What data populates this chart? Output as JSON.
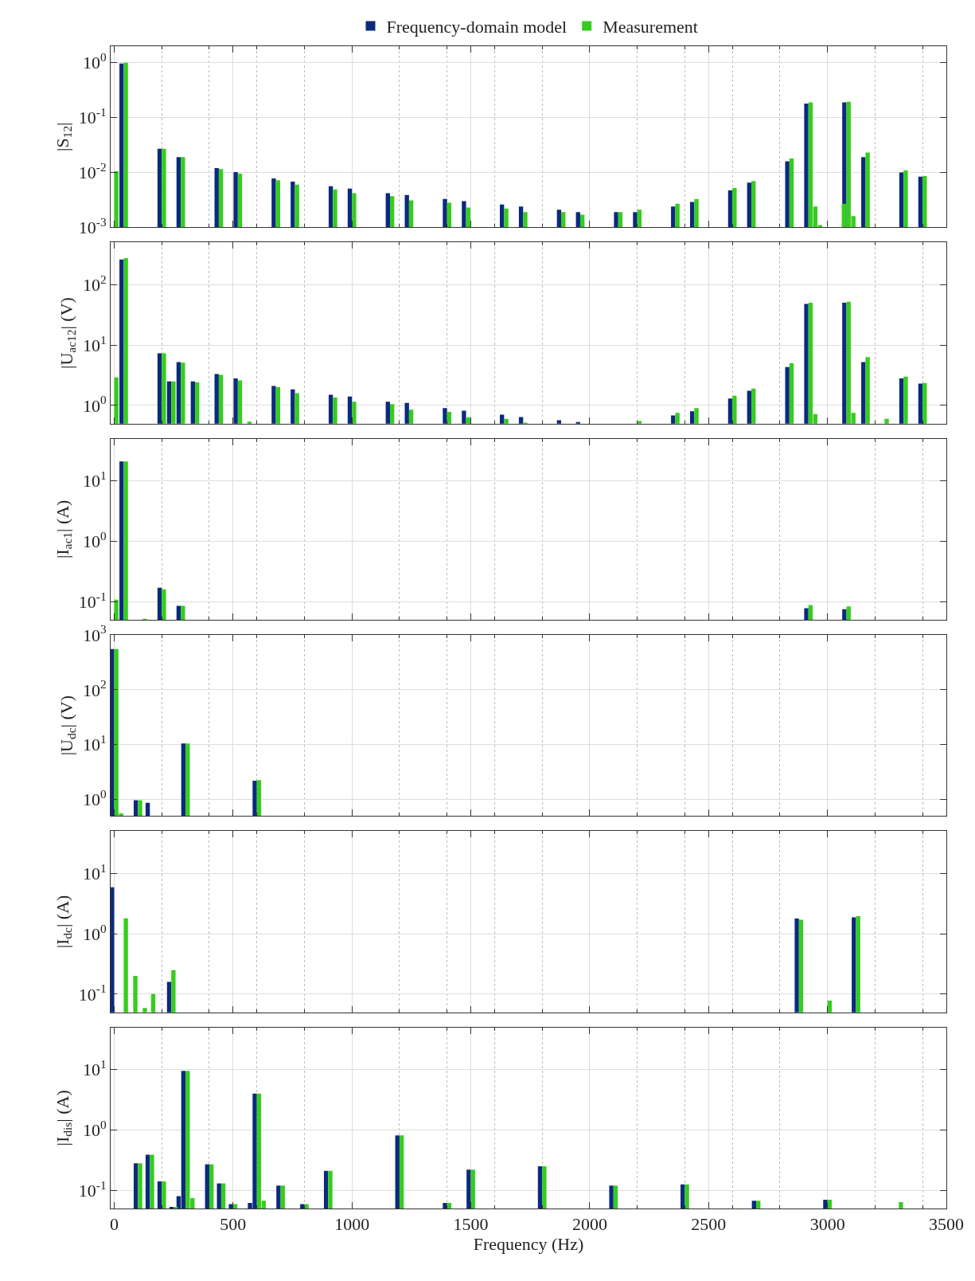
{
  "chart_data": [
    {
      "type": "bar",
      "ylabel": "|S$_{12}$|",
      "log": true,
      "grid": true,
      "legend": "top",
      "tick_labels": "y",
      "xlim": [
        -15,
        3500
      ],
      "xticks": [
        0,
        500,
        1000,
        1500,
        2000,
        2500,
        3000,
        3500
      ],
      "ylim": [
        0.001,
        2
      ],
      "yticks": [
        {
          "value": 0.001,
          "label": "10$^{-3}$"
        },
        {
          "value": 0.01,
          "label": "10$^{-2}$"
        },
        {
          "value": 0.1,
          "label": "10$^{-1}$"
        },
        {
          "value": 1,
          "label": "10$^{0}$"
        }
      ],
      "series": [
        {
          "name": "Frequency-domain model",
          "color": "#0b2a7e",
          "x": [
            40,
            200,
            280,
            440,
            520,
            680,
            760,
            920,
            1000,
            1160,
            1240,
            1400,
            1480,
            1640,
            1720,
            1880,
            1960,
            2120,
            2200,
            2360,
            2440,
            2600,
            2680,
            2840,
            2920,
            3080,
            3160,
            3320,
            3400
          ],
          "values": [
            0.97,
            0.027,
            0.019,
            0.012,
            0.0102,
            0.0078,
            0.0068,
            0.0056,
            0.0051,
            0.0042,
            0.0039,
            0.0033,
            0.003,
            0.0026,
            0.0024,
            0.0021,
            0.0019,
            0.0019,
            0.0019,
            0.0024,
            0.0029,
            0.0047,
            0.0065,
            0.016,
            0.18,
            0.19,
            0.019,
            0.01,
            0.0084
          ]
        },
        {
          "name": "Measurement",
          "color": "#36cc1f",
          "x": [
            0,
            40,
            200,
            280,
            440,
            520,
            680,
            760,
            920,
            1000,
            1160,
            1240,
            1400,
            1480,
            1640,
            1720,
            1880,
            1960,
            2120,
            2200,
            2360,
            2440,
            2600,
            2680,
            2840,
            2920,
            2940,
            2960,
            3060,
            3080,
            3100,
            3160,
            3320,
            3400
          ],
          "values": [
            0.0105,
            1.0,
            0.027,
            0.019,
            0.0115,
            0.0095,
            0.0072,
            0.006,
            0.0049,
            0.0042,
            0.0037,
            0.0031,
            0.0028,
            0.0023,
            0.0022,
            0.0019,
            0.0019,
            0.0017,
            0.0019,
            0.0021,
            0.0027,
            0.0033,
            0.0052,
            0.007,
            0.018,
            0.19,
            0.0024,
            0.0011,
            0.0027,
            0.195,
            0.0016,
            0.023,
            0.011,
            0.0086
          ]
        }
      ]
    },
    {
      "type": "bar",
      "ylabel": "|U$_{ac12}$| (V)",
      "log": true,
      "grid": true,
      "tick_labels": "y",
      "xlim": [
        -15,
        3500
      ],
      "xticks": [
        0,
        500,
        1000,
        1500,
        2000,
        2500,
        3000,
        3500
      ],
      "ylim": [
        0.5,
        500
      ],
      "yticks": [
        {
          "value": 1,
          "label": "10$^{0}$"
        },
        {
          "value": 10,
          "label": "10$^{1}$"
        },
        {
          "value": 100,
          "label": "10$^{2}$"
        }
      ],
      "series": [
        {
          "color": "#0b2a7e",
          "x": [
            40,
            200,
            240,
            280,
            340,
            440,
            520,
            680,
            760,
            920,
            1000,
            1160,
            1240,
            1400,
            1480,
            1640,
            1720,
            1880,
            1960,
            2360,
            2440,
            2600,
            2680,
            2840,
            2920,
            3080,
            3160,
            3320,
            3400
          ],
          "values": [
            260,
            7.3,
            2.5,
            5.2,
            2.5,
            3.3,
            2.8,
            2.1,
            1.85,
            1.5,
            1.4,
            1.15,
            1.1,
            0.9,
            0.82,
            0.7,
            0.64,
            0.57,
            0.53,
            0.68,
            0.8,
            1.3,
            1.75,
            4.3,
            48,
            50,
            5.2,
            2.8,
            2.3
          ]
        },
        {
          "color": "#36cc1f",
          "x": [
            0,
            40,
            200,
            240,
            280,
            340,
            440,
            520,
            560,
            680,
            760,
            920,
            1000,
            1160,
            1240,
            1400,
            1480,
            1640,
            1720,
            2200,
            2360,
            2440,
            2600,
            2680,
            2840,
            2920,
            2940,
            3080,
            3100,
            3160,
            3240,
            3320,
            3400
          ],
          "values": [
            2.9,
            275,
            7.3,
            2.5,
            5.1,
            2.4,
            3.2,
            2.6,
            0.54,
            2.0,
            1.6,
            1.35,
            1.15,
            1.05,
            0.85,
            0.78,
            0.63,
            0.6,
            0.52,
            0.55,
            0.75,
            0.9,
            1.45,
            1.9,
            5.0,
            50,
            0.72,
            52,
            0.75,
            6.3,
            0.6,
            3.0,
            2.35
          ]
        }
      ]
    },
    {
      "type": "bar",
      "ylabel": "|I$_{ac1}$| (A)",
      "log": true,
      "grid": true,
      "tick_labels": "y",
      "xlim": [
        -15,
        3500
      ],
      "xticks": [
        0,
        500,
        1000,
        1500,
        2000,
        2500,
        3000,
        3500
      ],
      "ylim": [
        0.05,
        50
      ],
      "yticks": [
        {
          "value": 0.1,
          "label": "10$^{-1}$"
        },
        {
          "value": 1,
          "label": "10$^{0}$"
        },
        {
          "value": 10,
          "label": "10$^{1}$"
        }
      ],
      "series": [
        {
          "color": "#0b2a7e",
          "x": [
            40,
            200,
            280,
            2920,
            3080
          ],
          "values": [
            21,
            0.17,
            0.085,
            0.078,
            0.075
          ]
        },
        {
          "color": "#36cc1f",
          "x": [
            0,
            40,
            120,
            200,
            280,
            2920,
            3080
          ],
          "values": [
            0.108,
            21,
            0.052,
            0.16,
            0.085,
            0.088,
            0.083
          ]
        }
      ]
    },
    {
      "type": "bar",
      "ylabel": "|U$_{dc}$| (V)",
      "log": true,
      "grid": true,
      "tick_labels": "y",
      "xlim": [
        -15,
        3500
      ],
      "xticks": [
        0,
        500,
        1000,
        1500,
        2000,
        2500,
        3000,
        3500
      ],
      "ylim": [
        0.5,
        1000
      ],
      "yticks": [
        {
          "value": 1,
          "label": "10$^{0}$"
        },
        {
          "value": 10,
          "label": "10$^{1}$"
        },
        {
          "value": 100,
          "label": "10$^{2}$"
        },
        {
          "value": 1000,
          "label": "10$^{3}$"
        }
      ],
      "series": [
        {
          "color": "#0b2a7e",
          "x": [
            0,
            100,
            150,
            300,
            600
          ],
          "values": [
            550,
            0.97,
            0.87,
            10.5,
            2.2
          ]
        },
        {
          "color": "#36cc1f",
          "x": [
            0,
            20,
            100,
            300,
            600
          ],
          "values": [
            550,
            0.56,
            0.97,
            10.5,
            2.25
          ]
        }
      ]
    },
    {
      "type": "bar",
      "ylabel": "|I$_{dc}$| (A)",
      "log": true,
      "grid": true,
      "tick_labels": "y",
      "xlim": [
        -15,
        3500
      ],
      "xticks": [
        0,
        500,
        1000,
        1500,
        2000,
        2500,
        3000,
        3500
      ],
      "ylim": [
        0.05,
        50
      ],
      "yticks": [
        {
          "value": 0.1,
          "label": "10$^{-1}$"
        },
        {
          "value": 1,
          "label": "10$^{0}$"
        },
        {
          "value": 10,
          "label": "10$^{1}$"
        }
      ],
      "series": [
        {
          "color": "#0b2a7e",
          "x": [
            0,
            240,
            2880,
            3120
          ],
          "values": [
            5.9,
            0.16,
            1.78,
            1.87
          ]
        },
        {
          "color": "#36cc1f",
          "x": [
            40,
            80,
            120,
            155,
            240,
            2880,
            3000,
            3120
          ],
          "values": [
            1.8,
            0.2,
            0.059,
            0.1,
            0.25,
            1.7,
            0.078,
            1.95
          ]
        }
      ]
    },
    {
      "type": "bar",
      "ylabel": "|I$_{dis}$| (A)",
      "xlabel": "Frequency (Hz)",
      "log": true,
      "grid": true,
      "xlim": [
        -15,
        3500
      ],
      "xticks": [
        0,
        500,
        1000,
        1500,
        2000,
        2500,
        3000,
        3500
      ],
      "ylim": [
        0.05,
        50
      ],
      "yticks": [
        {
          "value": 0.1,
          "label": "10$^{-1}$"
        },
        {
          "value": 1,
          "label": "10$^{0}$"
        },
        {
          "value": 10,
          "label": "10$^{1}$"
        }
      ],
      "series": [
        {
          "color": "#0b2a7e",
          "x": [
            100,
            150,
            200,
            250,
            280,
            300,
            400,
            450,
            500,
            580,
            600,
            700,
            800,
            900,
            1200,
            1400,
            1500,
            1800,
            2100,
            2400,
            2700,
            3000
          ],
          "values": [
            0.28,
            0.39,
            0.14,
            0.053,
            0.08,
            9.5,
            0.27,
            0.13,
            0.059,
            0.062,
            4.0,
            0.12,
            0.059,
            0.21,
            0.81,
            0.062,
            0.22,
            0.25,
            0.12,
            0.125,
            0.067,
            0.07
          ]
        },
        {
          "color": "#36cc1f",
          "x": [
            100,
            150,
            200,
            250,
            300,
            320,
            400,
            450,
            500,
            600,
            620,
            700,
            800,
            900,
            1200,
            1400,
            1500,
            1800,
            2100,
            2400,
            2700,
            3000,
            3300
          ],
          "values": [
            0.28,
            0.39,
            0.14,
            0.053,
            9.5,
            0.074,
            0.27,
            0.13,
            0.059,
            4.0,
            0.067,
            0.12,
            0.059,
            0.21,
            0.81,
            0.062,
            0.22,
            0.25,
            0.12,
            0.125,
            0.067,
            0.07,
            0.064
          ]
        }
      ]
    }
  ]
}
